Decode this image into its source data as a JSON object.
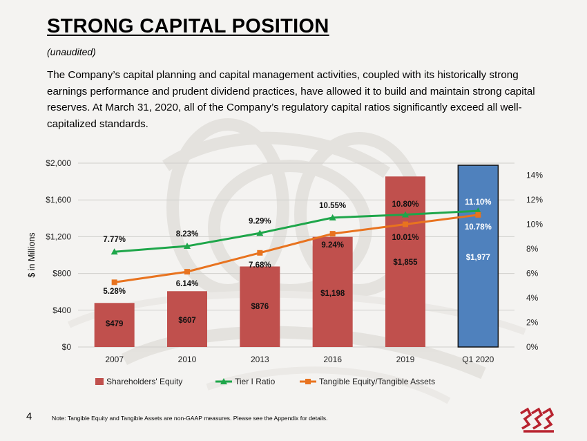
{
  "slide": {
    "title": "STRONG CAPITAL POSITION",
    "subtitle": "(unaudited)",
    "body": "The Company’s capital planning and capital management activities, coupled with its historically strong earnings performance and prudent dividend practices, have allowed it to build and maintain strong capital reserves. At March 31, 2020, all of the Company’s regulatory capital ratios significantly exceed all well-capitalized standards.",
    "page_number": "4",
    "note": "Note: Tangible Equity and Tangible Assets are non-GAAP measures. Please see the Appendix for details.",
    "logo_icon": "company-logo-icon"
  },
  "colors": {
    "bar": "#c0504d",
    "bar_highlight": "#4f81bd",
    "tier1": "#1ea64a",
    "tangible": "#e8731f"
  },
  "chart_data": {
    "type": "bar",
    "categories": [
      "2007",
      "2010",
      "2013",
      "2016",
      "2019",
      "Q1 2020"
    ],
    "ylabel": "$ in Millions",
    "ylim": [
      0,
      2000
    ],
    "y_ticks": [
      "$0",
      "$400",
      "$800",
      "$1,200",
      "$1,600",
      "$2,000"
    ],
    "y2lim": [
      0,
      15
    ],
    "y2_ticks": [
      "0%",
      "2%",
      "4%",
      "6%",
      "8%",
      "10%",
      "12%",
      "14%"
    ],
    "grid": true,
    "legend_position": "bottom",
    "series": [
      {
        "name": "Shareholders' Equity",
        "type": "bar",
        "axis": "left",
        "values": [
          479,
          607,
          876,
          1198,
          1855,
          1977
        ],
        "labels": [
          "$479",
          "$607",
          "$876",
          "$1,198",
          "$1,855",
          "$1,977"
        ]
      },
      {
        "name": "Tier I Ratio",
        "type": "line",
        "axis": "right",
        "marker": "triangle",
        "values": [
          7.77,
          8.23,
          9.29,
          10.55,
          10.8,
          11.1
        ],
        "labels": [
          "7.77%",
          "8.23%",
          "9.29%",
          "10.55%",
          "10.80%",
          "11.10%"
        ]
      },
      {
        "name": "Tangible Equity/Tangible Assets",
        "type": "line",
        "axis": "right",
        "marker": "square",
        "values": [
          5.28,
          6.14,
          7.68,
          9.24,
          10.01,
          10.78
        ],
        "labels": [
          "5.28%",
          "6.14%",
          "7.68%",
          "9.24%",
          "10.01%",
          "10.78%"
        ]
      }
    ]
  }
}
